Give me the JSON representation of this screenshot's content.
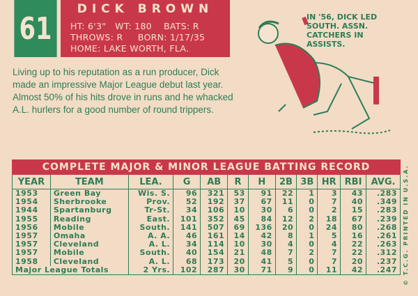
{
  "card_number": "61",
  "player": {
    "name": "DICK BROWN",
    "line1": "HT: 6'3\"   WT: 180    BATS: R",
    "line2": "THROWS: R     BORN: 1/17/35",
    "line3": "HOME: LAKE WORTH, FLA."
  },
  "bio": "Living up to his reputation as a run producer, Dick made an impressive Major League debut last year. Almost 50% of his hits drove in runs and he whacked A.L. hurlers for a good number of round trippers.",
  "cartoon_caption": "IN '56, DICK LED\nSOUTH. ASSN.\nCATCHERS IN\nASSISTS.",
  "copyright": "© T.C.G. PRINTED IN U.S.A.",
  "record": {
    "title": "COMPLETE MAJOR & MINOR LEAGUE BATTING RECORD",
    "columns": [
      "YEAR",
      "TEAM",
      "LEA.",
      "G",
      "AB",
      "R",
      "H",
      "2B",
      "3B",
      "HR",
      "RBI",
      "AVG."
    ],
    "rows": [
      [
        "1953",
        "Green Bay",
        "Wis. S.",
        "96",
        "321",
        "53",
        "91",
        "22",
        "1",
        "3",
        "43",
        ".283"
      ],
      [
        "1954",
        "Sherbrooke",
        "Prov.",
        "52",
        "192",
        "37",
        "67",
        "11",
        "0",
        "7",
        "40",
        ".349"
      ],
      [
        "1944",
        "Spartanburg",
        "Tr-St.",
        "34",
        "106",
        "10",
        "30",
        "6",
        "0",
        "2",
        "15",
        ".283"
      ],
      [
        "1955",
        "Reading",
        "East.",
        "101",
        "352",
        "45",
        "84",
        "12",
        "2",
        "18",
        "67",
        ".239"
      ],
      [
        "1956",
        "Mobile",
        "South.",
        "141",
        "507",
        "69",
        "136",
        "20",
        "0",
        "24",
        "80",
        ".268"
      ],
      [
        "1957",
        "Omaha",
        "A. A.",
        "46",
        "161",
        "14",
        "42",
        "8",
        "1",
        "5",
        "16",
        ".261"
      ],
      [
        "1957",
        "Cleveland",
        "A. L.",
        "34",
        "114",
        "10",
        "30",
        "4",
        "0",
        "4",
        "22",
        ".263"
      ],
      [
        "1957",
        "Mobile",
        "South.",
        "40",
        "154",
        "21",
        "48",
        "7",
        "2",
        "7",
        "22",
        ".312"
      ],
      [
        "1958",
        "Cleveland",
        "A. L.",
        "68",
        "173",
        "20",
        "41",
        "5",
        "0",
        "7",
        "20",
        ".237"
      ]
    ],
    "totals": [
      "Major League Totals",
      "2 Yrs.",
      "102",
      "287",
      "30",
      "71",
      "9",
      "0",
      "11",
      "42",
      ".247"
    ]
  },
  "colors": {
    "background": "#f2dcc6",
    "green": "#2e7d55",
    "red": "#c9384a"
  }
}
